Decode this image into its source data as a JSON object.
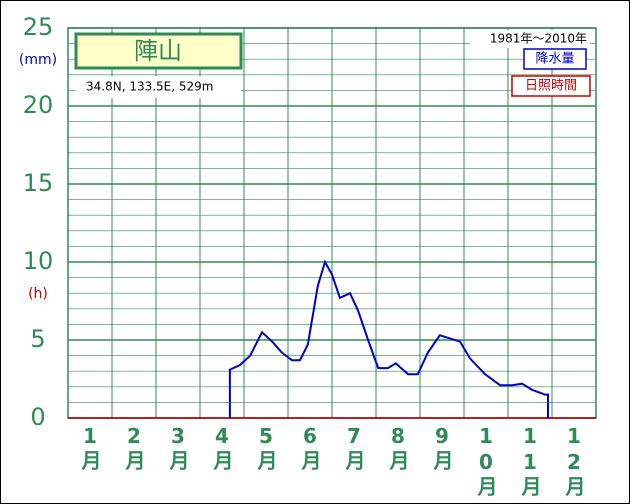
{
  "chart_data": {
    "type": "line",
    "title": "陣山",
    "subtitle": "34.8N,  133.5E,  529m",
    "period": "1981年～2010年",
    "y_unit_label": "(mm)",
    "y2_unit_label": "(h)",
    "xlim": [
      0,
      12
    ],
    "xticks": [
      {
        "value": 0.5,
        "label": "1月"
      },
      {
        "value": 1.5,
        "label": "2月"
      },
      {
        "value": 2.5,
        "label": "3月"
      },
      {
        "value": 3.5,
        "label": "4月"
      },
      {
        "value": 4.5,
        "label": "5月"
      },
      {
        "value": 5.5,
        "label": "6月"
      },
      {
        "value": 6.5,
        "label": "7月"
      },
      {
        "value": 7.5,
        "label": "8月"
      },
      {
        "value": 8.5,
        "label": "9月"
      },
      {
        "value": 9.5,
        "label": "10月"
      },
      {
        "value": 10.5,
        "label": "11月"
      },
      {
        "value": 11.5,
        "label": "12月"
      }
    ],
    "ylim": [
      0,
      25
    ],
    "yticks": [
      0,
      5,
      10,
      15,
      20,
      25
    ],
    "grid": true,
    "series": [
      {
        "name": "降水量",
        "color": "#0000cc",
        "x": [
          3.68,
          3.68,
          3.91,
          4.14,
          4.41,
          4.64,
          4.86,
          5.09,
          5.27,
          5.45,
          5.68,
          5.84,
          6.0,
          6.18,
          6.41,
          6.59,
          6.82,
          7.05,
          7.27,
          7.45,
          7.73,
          7.95,
          8.18,
          8.45,
          8.91,
          9.14,
          9.48,
          9.82,
          10.09,
          10.32,
          10.55,
          10.84,
          10.91,
          10.91
        ],
        "values": [
          0,
          3.1,
          3.4,
          4.0,
          5.5,
          4.9,
          4.2,
          3.7,
          3.7,
          4.7,
          8.5,
          10.0,
          9.2,
          7.7,
          8.0,
          6.9,
          5.0,
          3.2,
          3.2,
          3.5,
          2.8,
          2.8,
          4.2,
          5.3,
          4.9,
          3.8,
          2.8,
          2.1,
          2.1,
          2.2,
          1.8,
          1.5,
          1.5,
          0
        ]
      },
      {
        "name": "日照時間",
        "color": "#cc0000",
        "x": [],
        "values": []
      }
    ]
  }
}
